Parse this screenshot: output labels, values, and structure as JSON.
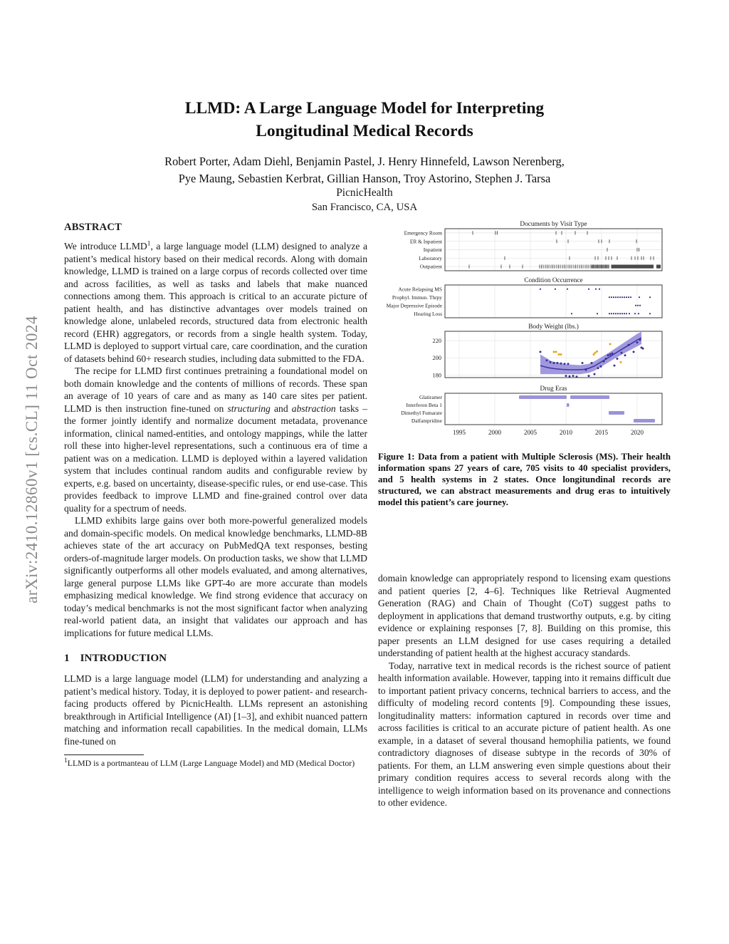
{
  "arxiv_watermark": "arXiv:2410.12860v1 [cs.CL] 11 Oct 2024",
  "header": {
    "title_line1": "LLMD: A Large Language Model for Interpreting",
    "title_line2": "Longitudinal Medical Records",
    "authors_line1": "Robert Porter, Adam Diehl, Benjamin Pastel, J. Henry Hinnefeld, Lawson Nerenberg,",
    "authors_line2": "Pye Maung, Sebastien Kerbrat, Gillian Hanson, Troy Astorino, Stephen J. Tarsa",
    "affiliation": "PicnicHealth",
    "location": "San Francisco, CA, USA"
  },
  "abstract": {
    "heading": "ABSTRACT",
    "p1_pre": "We introduce LLMD",
    "p1_sup": "1",
    "p1_post": ", a large language model (LLM) designed to analyze a patient’s medical history based on their medical records. Along with domain knowledge, LLMD is trained on a large corpus of records collected over time and across facilities, as well as tasks and labels that make nuanced connections among them. This approach is critical to an accurate picture of patient health, and has distinctive advantages over models trained on knowledge alone, unlabeled records, structured data from electronic health record (EHR) aggregators, or records from a single health system. Today, LLMD is deployed to support virtual care, care coordination, and the curation of datasets behind 60+ research studies, including data submitted to the FDA.",
    "p2_pre": "The recipe for LLMD first continues pretraining a foundational model on both domain knowledge and the contents of millions of records. These span an average of 10 years of care and as many as 140 care sites per patient. LLMD is then instruction fine-tuned on ",
    "p2_italic1": "structuring",
    "p2_mid": " and ",
    "p2_italic2": "abstraction",
    "p2_post": " tasks – the former jointly identify and normalize document metadata, provenance information, clinical named-entities, and ontology mappings, while the latter roll these into higher-level representations, such a continuous era of time a patient was on a medication. LLMD is deployed within a layered validation system that includes continual random audits and configurable review by experts, e.g. based on uncertainty, disease-specific rules, or end use-case. This provides feedback to improve LLMD and fine-grained control over data quality for a spectrum of needs.",
    "p3": "LLMD exhibits large gains over both more-powerful generalized models and domain-specific models. On medical knowledge benchmarks, LLMD-8B achieves state of the art accuracy on PubMedQA text responses, besting orders-of-magnitude larger models. On production tasks, we show that LLMD significantly outperforms all other models evaluated, and among alternatives, large general purpose LLMs like GPT-4o are more accurate than models emphasizing medical knowledge. We find strong evidence that accuracy on today’s medical benchmarks is not the most significant factor when analyzing real-world patient data, an insight that validates our approach and has implications for future medical LLMs."
  },
  "introduction": {
    "number": "1",
    "heading": "INTRODUCTION",
    "p1": "LLMD is a large language model (LLM) for understanding and analyzing a patient’s medical history. Today, it is deployed to power patient- and research-facing products offered by PicnicHealth. LLMs represent an astonishing breakthrough in Artificial Intelligence (AI) [1–3], and exhibit nuanced pattern matching and information recall capabilities. In the medical domain, LLMs fine-tuned on"
  },
  "footnote": {
    "sup": "1",
    "text": "LLMD is a portmanteau of LLM (Large Language Model) and MD (Medical Doctor)"
  },
  "right_column": {
    "p1": "domain knowledge can appropriately respond to licensing exam questions and patient queries [2, 4–6]. Techniques like Retrieval Augmented Generation (RAG) and Chain of Thought (CoT) suggest paths to deployment in applications that demand trustworthy outputs, e.g. by citing evidence or explaining responses [7, 8]. Building on this promise, this paper presents an LLM designed for use cases requiring a detailed understanding of patient health at the highest accuracy standards.",
    "p2": "Today, narrative text in medical records is the richest source of patient health information available. However, tapping into it remains difficult due to important patient privacy concerns, technical barriers to access, and the difficulty of modeling record contents [9]. Compounding these issues, longitudinality matters: information captured in records over time and across facilities is critical to an accurate picture of patient health. As one example, in a dataset of several thousand hemophilia patients, we found contradictory diagnoses of disease subtype in the records of 30% of patients. For them, an LLM answering even simple questions about their primary condition requires access to several records along with the intelligence to weigh information based on its provenance and connections to other evidence."
  },
  "figure": {
    "caption": "Figure 1: Data from a patient with Multiple Sclerosis (MS). Their health information spans 27 years of care, 705 visits to 40 specialist providers, and 5 health systems in 2 states. Once longitundinal records are structured, we can abstract measurements and drug eras to intuitively model this patient’s care journey.",
    "x_range": [
      1993,
      2023.5
    ],
    "x_ticks": [
      1995,
      2000,
      2005,
      2010,
      2015,
      2020
    ],
    "colors": {
      "doc_tick": "#4a4a4a",
      "condition_dot": "#32327f",
      "trend_line": "#4034a0",
      "band": "#8f87d8",
      "scatter_point": "#3a3190",
      "outlier_point": "#e8a31f",
      "drug_bar": "#9a93d8",
      "grid": "#ebebeb",
      "border": "#3a3a3a",
      "text": "#1a1a1a"
    },
    "chart_data": [
      {
        "type": "event-ticks",
        "title": "Documents by Visit Type",
        "row_gridlines": true,
        "rows": [
          {
            "label": "Emergency Room",
            "ticks": [
              1996.9,
              2000.1,
              2000.35,
              2008.6,
              2009.4,
              2011.3,
              2013.0
            ]
          },
          {
            "label": "ER & Inpatient",
            "ticks": [
              2008.7,
              2010.3,
              2014.6,
              2015.0,
              2016.1,
              2019.9
            ]
          },
          {
            "label": "Inpatient",
            "ticks": [
              2015.8,
              2020.0,
              2020.25
            ]
          },
          {
            "label": "Laboratory",
            "ticks": [
              2001.4,
              2010.5,
              2014.1,
              2014.5,
              2015.6,
              2016.0,
              2016.4,
              2017.2,
              2019.2,
              2019.7,
              2020.1,
              2020.6,
              2020.9,
              2021.9,
              2022.3
            ]
          },
          {
            "label": "Outpatient",
            "ticks": [
              1996.4,
              2000.9,
              2002.1,
              2003.9,
              2006.3,
              2006.55,
              2006.8,
              2007.1,
              2007.35,
              2007.6,
              2007.9,
              2008.15,
              2008.4,
              2008.7,
              2008.95,
              2009.2,
              2009.5,
              2009.75,
              2010.0,
              2010.3,
              2010.55,
              2010.8,
              2011.1,
              2011.35,
              2011.6,
              2011.9,
              2012.15,
              2012.4,
              2012.7,
              2012.95,
              2013.2,
              2013.5,
              2013.62,
              2013.74,
              2013.86,
              2013.98,
              2014.1,
              2014.22,
              2014.34,
              2014.46,
              2014.58,
              2014.7,
              2014.82,
              2014.94,
              2015.06,
              2015.18,
              2015.3,
              2015.42,
              2015.54,
              2015.66,
              2015.78,
              2015.9,
              2016.02
            ],
            "spans": [
              [
                2016.35,
                2022.3
              ],
              [
                2022.7,
                2023.3
              ]
            ]
          }
        ]
      },
      {
        "type": "event-dots",
        "title": "Condition Occurrence",
        "rows": [
          {
            "label": "Acute Relapsing MS",
            "dots": [
              2006.4,
              2008.5,
              2010.2,
              2013.2,
              2014.2,
              2014.7
            ]
          },
          {
            "label": "Prophyl. Immun. Thrpy",
            "dots": [
              2016.1,
              2016.4,
              2016.7,
              2017.0,
              2017.3,
              2017.6,
              2017.9,
              2018.2,
              2018.5,
              2018.8,
              2019.1,
              2020.3,
              2021.8
            ]
          },
          {
            "label": "Major Depressive Episode",
            "dots": [
              2019.8,
              2020.1,
              2020.4
            ]
          },
          {
            "label": "Hearing Loss",
            "dots": [
              2010.8,
              2014.4,
              2016.1,
              2016.4,
              2016.7,
              2017.0,
              2017.3,
              2017.6,
              2017.9,
              2018.2,
              2018.5,
              2018.9,
              2019.7,
              2020.2,
              2021.8
            ]
          }
        ]
      },
      {
        "type": "scatter-trend",
        "title": "Body Weight (lbs.)",
        "y_ticks": [
          180,
          200,
          220
        ],
        "y_range": [
          177,
          231
        ],
        "band": [
          [
            2006.4,
            181,
            204
          ],
          [
            2008,
            181,
            196
          ],
          [
            2010,
            181,
            192.5
          ],
          [
            2012,
            181,
            191.5
          ],
          [
            2013.2,
            182.5,
            193
          ],
          [
            2014,
            185,
            196
          ],
          [
            2015,
            190,
            201
          ],
          [
            2016,
            195,
            206
          ],
          [
            2017,
            200,
            211.5
          ],
          [
            2018,
            204.5,
            217
          ],
          [
            2019,
            209,
            222.5
          ],
          [
            2020,
            213.5,
            228
          ],
          [
            2020.6,
            216,
            230.5
          ]
        ],
        "trend": [
          [
            2006.4,
            191
          ],
          [
            2007.5,
            188.5
          ],
          [
            2008.5,
            187.3
          ],
          [
            2009.5,
            186.6
          ],
          [
            2010.5,
            186.2
          ],
          [
            2011.5,
            186.1
          ],
          [
            2012.5,
            186.6
          ],
          [
            2013.2,
            187.8
          ],
          [
            2014,
            190.5
          ],
          [
            2015,
            195.5
          ],
          [
            2016,
            200.5
          ],
          [
            2017,
            205.8
          ],
          [
            2018,
            210.8
          ],
          [
            2019,
            215.8
          ],
          [
            2020,
            220.8
          ],
          [
            2020.6,
            223.5
          ]
        ],
        "points": [
          [
            2006.4,
            207
          ],
          [
            2007.3,
            197
          ],
          [
            2007.8,
            195
          ],
          [
            2008.3,
            194
          ],
          [
            2008.8,
            194
          ],
          [
            2009.3,
            193.5
          ],
          [
            2009.8,
            193
          ],
          [
            2010.3,
            193
          ],
          [
            2010.0,
            179
          ],
          [
            2010.5,
            178.5
          ],
          [
            2011.0,
            179
          ],
          [
            2011.5,
            178
          ],
          [
            2011.9,
            176
          ],
          [
            2012.3,
            194
          ],
          [
            2012.8,
            186
          ],
          [
            2013.2,
            179
          ],
          [
            2013.6,
            194
          ],
          [
            2014.0,
            181
          ],
          [
            2014.2,
            175
          ],
          [
            2014.5,
            188
          ],
          [
            2014.9,
            190
          ],
          [
            2015.3,
            196
          ],
          [
            2015.6,
            199
          ],
          [
            2015.9,
            203
          ],
          [
            2016.2,
            204
          ],
          [
            2016.5,
            205
          ],
          [
            2016.8,
            191
          ],
          [
            2017.2,
            199
          ],
          [
            2017.8,
            206
          ],
          [
            2018.3,
            203
          ],
          [
            2018.8,
            215
          ],
          [
            2019.5,
            207
          ],
          [
            2020.0,
            218
          ],
          [
            2020.4,
            221
          ],
          [
            2020.6,
            212
          ],
          [
            2020.8,
            211
          ]
        ],
        "outliers": [
          [
            2008.3,
            207
          ],
          [
            2008.6,
            207
          ],
          [
            2009.0,
            204
          ],
          [
            2009.3,
            204
          ],
          [
            2013.9,
            204
          ],
          [
            2014.1,
            206
          ],
          [
            2014.35,
            207.5
          ],
          [
            2016.2,
            216
          ],
          [
            2017.7,
            195
          ]
        ]
      },
      {
        "type": "gantt",
        "title": "Drug Eras",
        "rows": [
          {
            "label": "Glatiramer",
            "spans": [
              [
                2003.4,
                2010.1
              ],
              [
                2010.6,
                2016.1
              ]
            ]
          },
          {
            "label": "Interferon Beta 1",
            "spans": [
              [
                2010.1,
                2010.45
              ]
            ]
          },
          {
            "label": "Dimethyl Fumarate",
            "spans": [
              [
                2016.0,
                2018.2
              ]
            ]
          },
          {
            "label": "Dalfampridine",
            "spans": [
              [
                2019.5,
                2022.5
              ]
            ]
          }
        ]
      }
    ]
  }
}
